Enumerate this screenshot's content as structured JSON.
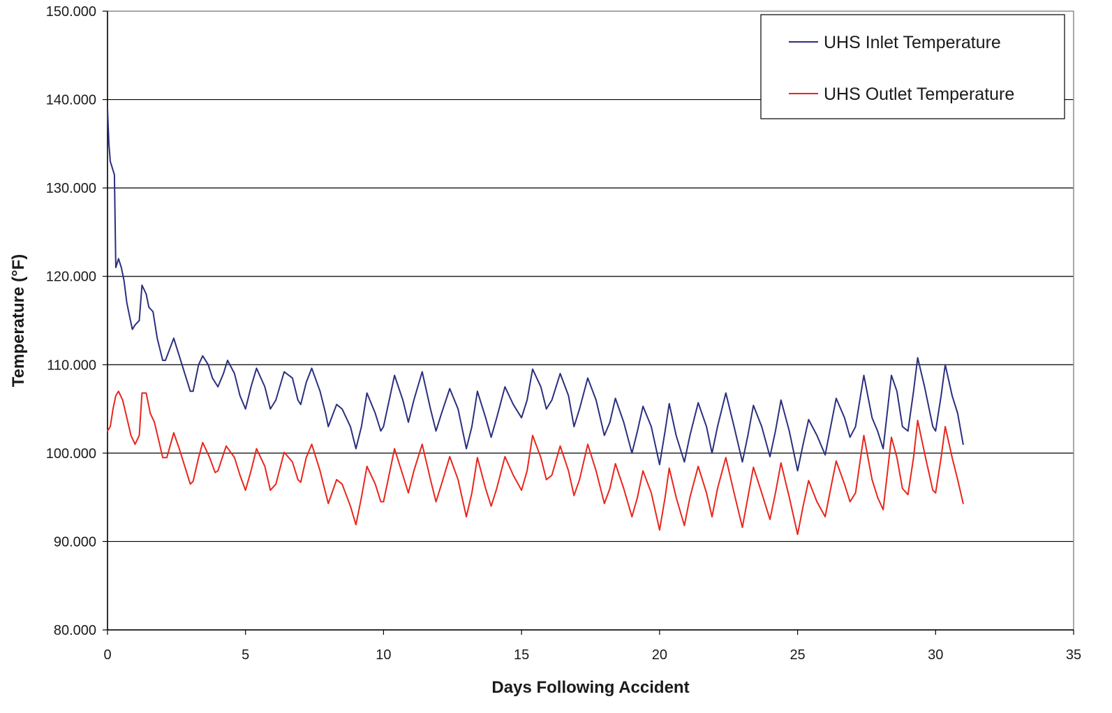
{
  "chart_data": {
    "type": "line",
    "title": "",
    "xlabel": "Days Following Accident",
    "ylabel": "Temperature (°F)",
    "xlim": [
      0,
      35
    ],
    "ylim": [
      80,
      150
    ],
    "xticks": [
      0,
      5,
      10,
      15,
      20,
      25,
      30,
      35
    ],
    "xtick_labels": [
      "0",
      "5",
      "10",
      "15",
      "20",
      "25",
      "30",
      "35"
    ],
    "yticks": [
      80,
      90,
      100,
      110,
      120,
      130,
      140,
      150
    ],
    "ytick_labels": [
      "80.000",
      "90.000",
      "100.000",
      "110.000",
      "120.000",
      "130.000",
      "140.000",
      "150.000"
    ],
    "grid": "horizontal",
    "legend_position": "top-right",
    "series": [
      {
        "name": "UHS Inlet Temperature",
        "color": "#2b2f7e",
        "points": [
          [
            0,
            139
          ],
          [
            0.05,
            135
          ],
          [
            0.1,
            133
          ],
          [
            0.2,
            132
          ],
          [
            0.25,
            131.5
          ],
          [
            0.3,
            121
          ],
          [
            0.4,
            122
          ],
          [
            0.5,
            121
          ],
          [
            0.6,
            119.5
          ],
          [
            0.7,
            117
          ],
          [
            0.8,
            115.5
          ],
          [
            0.9,
            114
          ],
          [
            1.0,
            114.5
          ],
          [
            1.15,
            115
          ],
          [
            1.25,
            119
          ],
          [
            1.4,
            118
          ],
          [
            1.5,
            116.5
          ],
          [
            1.65,
            116
          ],
          [
            1.8,
            113
          ],
          [
            2.0,
            110.5
          ],
          [
            2.1,
            110.5
          ],
          [
            2.4,
            113
          ],
          [
            2.6,
            111
          ],
          [
            2.8,
            109
          ],
          [
            3.0,
            107
          ],
          [
            3.1,
            107
          ],
          [
            3.3,
            110
          ],
          [
            3.45,
            111
          ],
          [
            3.65,
            110
          ],
          [
            3.8,
            108.5
          ],
          [
            4.0,
            107.5
          ],
          [
            4.2,
            109
          ],
          [
            4.35,
            110.5
          ],
          [
            4.6,
            109
          ],
          [
            4.8,
            106.5
          ],
          [
            5.0,
            105
          ],
          [
            5.2,
            107.5
          ],
          [
            5.4,
            109.6
          ],
          [
            5.7,
            107.5
          ],
          [
            5.9,
            105
          ],
          [
            6.1,
            106
          ],
          [
            6.4,
            109.2
          ],
          [
            6.7,
            108.5
          ],
          [
            6.9,
            106
          ],
          [
            7.0,
            105.5
          ],
          [
            7.2,
            108
          ],
          [
            7.4,
            109.6
          ],
          [
            7.7,
            107
          ],
          [
            7.9,
            104.5
          ],
          [
            8.0,
            103
          ],
          [
            8.3,
            105.5
          ],
          [
            8.5,
            105
          ],
          [
            8.8,
            103
          ],
          [
            9.0,
            100.5
          ],
          [
            9.2,
            103
          ],
          [
            9.4,
            106.8
          ],
          [
            9.7,
            104.5
          ],
          [
            9.9,
            102.5
          ],
          [
            10.0,
            103
          ],
          [
            10.4,
            108.8
          ],
          [
            10.7,
            106
          ],
          [
            10.9,
            103.5
          ],
          [
            11.1,
            106
          ],
          [
            11.4,
            109.2
          ],
          [
            11.7,
            105
          ],
          [
            11.9,
            102.5
          ],
          [
            12.1,
            104.5
          ],
          [
            12.4,
            107.3
          ],
          [
            12.7,
            105
          ],
          [
            13.0,
            100.5
          ],
          [
            13.2,
            103
          ],
          [
            13.4,
            107
          ],
          [
            13.7,
            104
          ],
          [
            13.9,
            101.8
          ],
          [
            14.1,
            104
          ],
          [
            14.4,
            107.5
          ],
          [
            14.7,
            105.5
          ],
          [
            15.0,
            104
          ],
          [
            15.2,
            106
          ],
          [
            15.4,
            109.5
          ],
          [
            15.7,
            107.5
          ],
          [
            15.9,
            105
          ],
          [
            16.1,
            106
          ],
          [
            16.4,
            109
          ],
          [
            16.7,
            106.5
          ],
          [
            16.9,
            103
          ],
          [
            17.1,
            105
          ],
          [
            17.4,
            108.5
          ],
          [
            17.7,
            106
          ],
          [
            18.0,
            102
          ],
          [
            18.2,
            103.5
          ],
          [
            18.4,
            106.2
          ],
          [
            18.7,
            103.5
          ],
          [
            19.0,
            100
          ],
          [
            19.2,
            102.5
          ],
          [
            19.4,
            105.3
          ],
          [
            19.7,
            103
          ],
          [
            20.0,
            98.7
          ],
          [
            20.2,
            102.5
          ],
          [
            20.35,
            105.6
          ],
          [
            20.6,
            102
          ],
          [
            20.9,
            99
          ],
          [
            21.1,
            102
          ],
          [
            21.4,
            105.7
          ],
          [
            21.7,
            103
          ],
          [
            21.9,
            100
          ],
          [
            22.1,
            103
          ],
          [
            22.4,
            106.8
          ],
          [
            22.7,
            103
          ],
          [
            23.0,
            99
          ],
          [
            23.2,
            102
          ],
          [
            23.4,
            105.4
          ],
          [
            23.7,
            103
          ],
          [
            24.0,
            99.6
          ],
          [
            24.2,
            102.5
          ],
          [
            24.4,
            106
          ],
          [
            24.7,
            102.5
          ],
          [
            25.0,
            98
          ],
          [
            25.2,
            101
          ],
          [
            25.4,
            103.8
          ],
          [
            25.7,
            102
          ],
          [
            26.0,
            99.8
          ],
          [
            26.2,
            103
          ],
          [
            26.4,
            106.2
          ],
          [
            26.7,
            104
          ],
          [
            26.9,
            101.8
          ],
          [
            27.1,
            103
          ],
          [
            27.4,
            108.8
          ],
          [
            27.7,
            104
          ],
          [
            27.9,
            102.5
          ],
          [
            28.1,
            100.5
          ],
          [
            28.4,
            108.8
          ],
          [
            28.6,
            107
          ],
          [
            28.8,
            103
          ],
          [
            29.0,
            102.5
          ],
          [
            29.2,
            107
          ],
          [
            29.35,
            110.8
          ],
          [
            29.6,
            107.5
          ],
          [
            29.9,
            103
          ],
          [
            30.0,
            102.5
          ],
          [
            30.2,
            106.5
          ],
          [
            30.35,
            110
          ],
          [
            30.6,
            106.5
          ],
          [
            30.8,
            104.5
          ],
          [
            31.0,
            101
          ]
        ]
      },
      {
        "name": "UHS Outlet Temperature",
        "color": "#e8261c",
        "points": [
          [
            0,
            102.5
          ],
          [
            0.1,
            103
          ],
          [
            0.2,
            105
          ],
          [
            0.3,
            106.5
          ],
          [
            0.4,
            107
          ],
          [
            0.55,
            106
          ],
          [
            0.7,
            104
          ],
          [
            0.85,
            102
          ],
          [
            1.0,
            101
          ],
          [
            1.15,
            102
          ],
          [
            1.25,
            106.8
          ],
          [
            1.4,
            106.8
          ],
          [
            1.55,
            104.5
          ],
          [
            1.7,
            103.5
          ],
          [
            1.85,
            101.5
          ],
          [
            2.0,
            99.5
          ],
          [
            2.15,
            99.5
          ],
          [
            2.4,
            102.3
          ],
          [
            2.6,
            100.5
          ],
          [
            2.8,
            98.5
          ],
          [
            3.0,
            96.5
          ],
          [
            3.1,
            96.8
          ],
          [
            3.3,
            99.5
          ],
          [
            3.45,
            101.2
          ],
          [
            3.7,
            99.5
          ],
          [
            3.9,
            97.8
          ],
          [
            4.0,
            98
          ],
          [
            4.3,
            100.8
          ],
          [
            4.6,
            99.5
          ],
          [
            4.8,
            97.5
          ],
          [
            5.0,
            95.8
          ],
          [
            5.2,
            98
          ],
          [
            5.4,
            100.5
          ],
          [
            5.7,
            98.5
          ],
          [
            5.9,
            95.8
          ],
          [
            6.1,
            96.5
          ],
          [
            6.4,
            100.1
          ],
          [
            6.7,
            99
          ],
          [
            6.9,
            97
          ],
          [
            7.0,
            96.7
          ],
          [
            7.2,
            99.5
          ],
          [
            7.4,
            101
          ],
          [
            7.7,
            98
          ],
          [
            7.9,
            95.5
          ],
          [
            8.0,
            94.3
          ],
          [
            8.3,
            97
          ],
          [
            8.5,
            96.5
          ],
          [
            8.8,
            94
          ],
          [
            9.0,
            91.9
          ],
          [
            9.2,
            95
          ],
          [
            9.4,
            98.5
          ],
          [
            9.7,
            96.5
          ],
          [
            9.9,
            94.5
          ],
          [
            10.0,
            94.5
          ],
          [
            10.4,
            100.5
          ],
          [
            10.7,
            97.5
          ],
          [
            10.9,
            95.5
          ],
          [
            11.1,
            98
          ],
          [
            11.4,
            101
          ],
          [
            11.7,
            97
          ],
          [
            11.9,
            94.5
          ],
          [
            12.1,
            96.5
          ],
          [
            12.4,
            99.6
          ],
          [
            12.7,
            97
          ],
          [
            13.0,
            92.8
          ],
          [
            13.2,
            95.5
          ],
          [
            13.4,
            99.5
          ],
          [
            13.7,
            96
          ],
          [
            13.9,
            94
          ],
          [
            14.1,
            96
          ],
          [
            14.4,
            99.6
          ],
          [
            14.7,
            97.5
          ],
          [
            15.0,
            95.8
          ],
          [
            15.2,
            98
          ],
          [
            15.4,
            102
          ],
          [
            15.7,
            99.5
          ],
          [
            15.9,
            97
          ],
          [
            16.1,
            97.5
          ],
          [
            16.4,
            100.8
          ],
          [
            16.7,
            98
          ],
          [
            16.9,
            95.2
          ],
          [
            17.1,
            97
          ],
          [
            17.4,
            101
          ],
          [
            17.7,
            98
          ],
          [
            18.0,
            94.3
          ],
          [
            18.2,
            96
          ],
          [
            18.4,
            98.8
          ],
          [
            18.7,
            96
          ],
          [
            19.0,
            92.8
          ],
          [
            19.2,
            95
          ],
          [
            19.4,
            98
          ],
          [
            19.7,
            95.5
          ],
          [
            20.0,
            91.3
          ],
          [
            20.2,
            95
          ],
          [
            20.35,
            98.3
          ],
          [
            20.6,
            95
          ],
          [
            20.9,
            91.8
          ],
          [
            21.1,
            95
          ],
          [
            21.4,
            98.5
          ],
          [
            21.7,
            95.5
          ],
          [
            21.9,
            92.8
          ],
          [
            22.1,
            96
          ],
          [
            22.4,
            99.5
          ],
          [
            22.7,
            95.5
          ],
          [
            23.0,
            91.6
          ],
          [
            23.2,
            95
          ],
          [
            23.4,
            98.4
          ],
          [
            23.7,
            95.5
          ],
          [
            24.0,
            92.5
          ],
          [
            24.2,
            95.5
          ],
          [
            24.4,
            98.9
          ],
          [
            24.7,
            95
          ],
          [
            25.0,
            90.8
          ],
          [
            25.2,
            94
          ],
          [
            25.4,
            96.9
          ],
          [
            25.7,
            94.5
          ],
          [
            26.0,
            92.8
          ],
          [
            26.2,
            96
          ],
          [
            26.4,
            99.1
          ],
          [
            26.7,
            96.5
          ],
          [
            26.9,
            94.5
          ],
          [
            27.1,
            95.5
          ],
          [
            27.4,
            102
          ],
          [
            27.7,
            97
          ],
          [
            27.9,
            95
          ],
          [
            28.1,
            93.6
          ],
          [
            28.4,
            101.8
          ],
          [
            28.6,
            99.5
          ],
          [
            28.8,
            96
          ],
          [
            29.0,
            95.3
          ],
          [
            29.2,
            99.5
          ],
          [
            29.35,
            103.7
          ],
          [
            29.6,
            100
          ],
          [
            29.9,
            95.8
          ],
          [
            30.0,
            95.5
          ],
          [
            30.2,
            99.5
          ],
          [
            30.35,
            103
          ],
          [
            30.6,
            99.5
          ],
          [
            30.8,
            97
          ],
          [
            31.0,
            94.3
          ]
        ]
      }
    ]
  }
}
